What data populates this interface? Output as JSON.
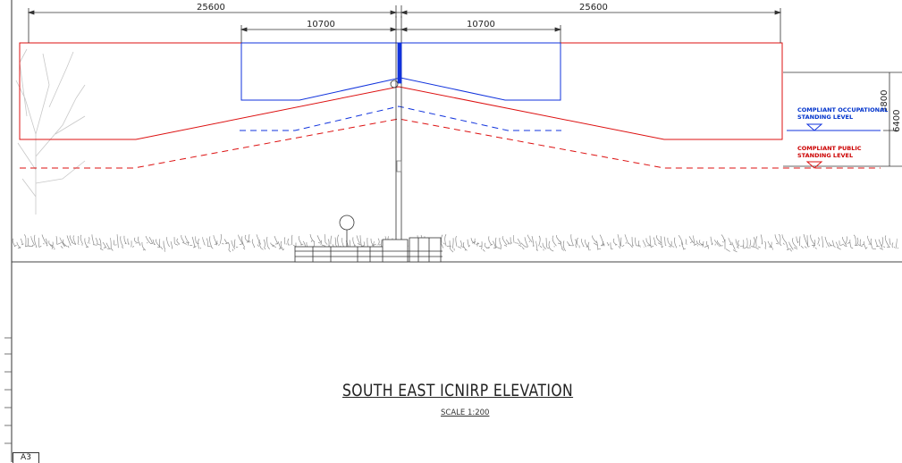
{
  "dimensions": {
    "outer_left": "25600",
    "outer_right": "25600",
    "inner_left": "10700",
    "inner_right": "10700",
    "vertical_upper": "3800",
    "vertical_lower": "6400"
  },
  "levels": {
    "occupational": "COMPLIANT OCCUPATIONAL STANDING LEVEL",
    "public": "COMPLIANT PUBLIC STANDING LEVEL"
  },
  "title": "SOUTH EAST ICNIRP ELEVATION",
  "scale": "SCALE 1:200",
  "sheet": "A3",
  "colors": {
    "public_zone": "#dd1111",
    "occupational_zone": "#1133dd",
    "linework": "#333333"
  }
}
